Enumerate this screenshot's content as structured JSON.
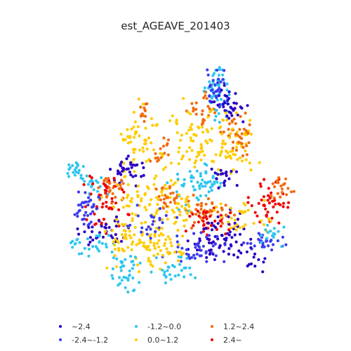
{
  "title": "est_AGEAVE_201403",
  "colors": {
    "c0": "#2a00c4",
    "c1": "#3b3bf0",
    "c2": "#2ec6f0",
    "c3": "#ffcc00",
    "c4": "#f26b10",
    "c5": "#f00000"
  },
  "legend": [
    {
      "label": "~2.4",
      "color_key": "c0"
    },
    {
      "label": "-2.4~-1.2",
      "color_key": "c1"
    },
    {
      "label": "-1.2~0.0",
      "color_key": "c2"
    },
    {
      "label": "0.0~1.2",
      "color_key": "c3"
    },
    {
      "label": "1.2~2.4",
      "color_key": "c4"
    },
    {
      "label": "2.4~",
      "color_key": "c5"
    }
  ]
}
